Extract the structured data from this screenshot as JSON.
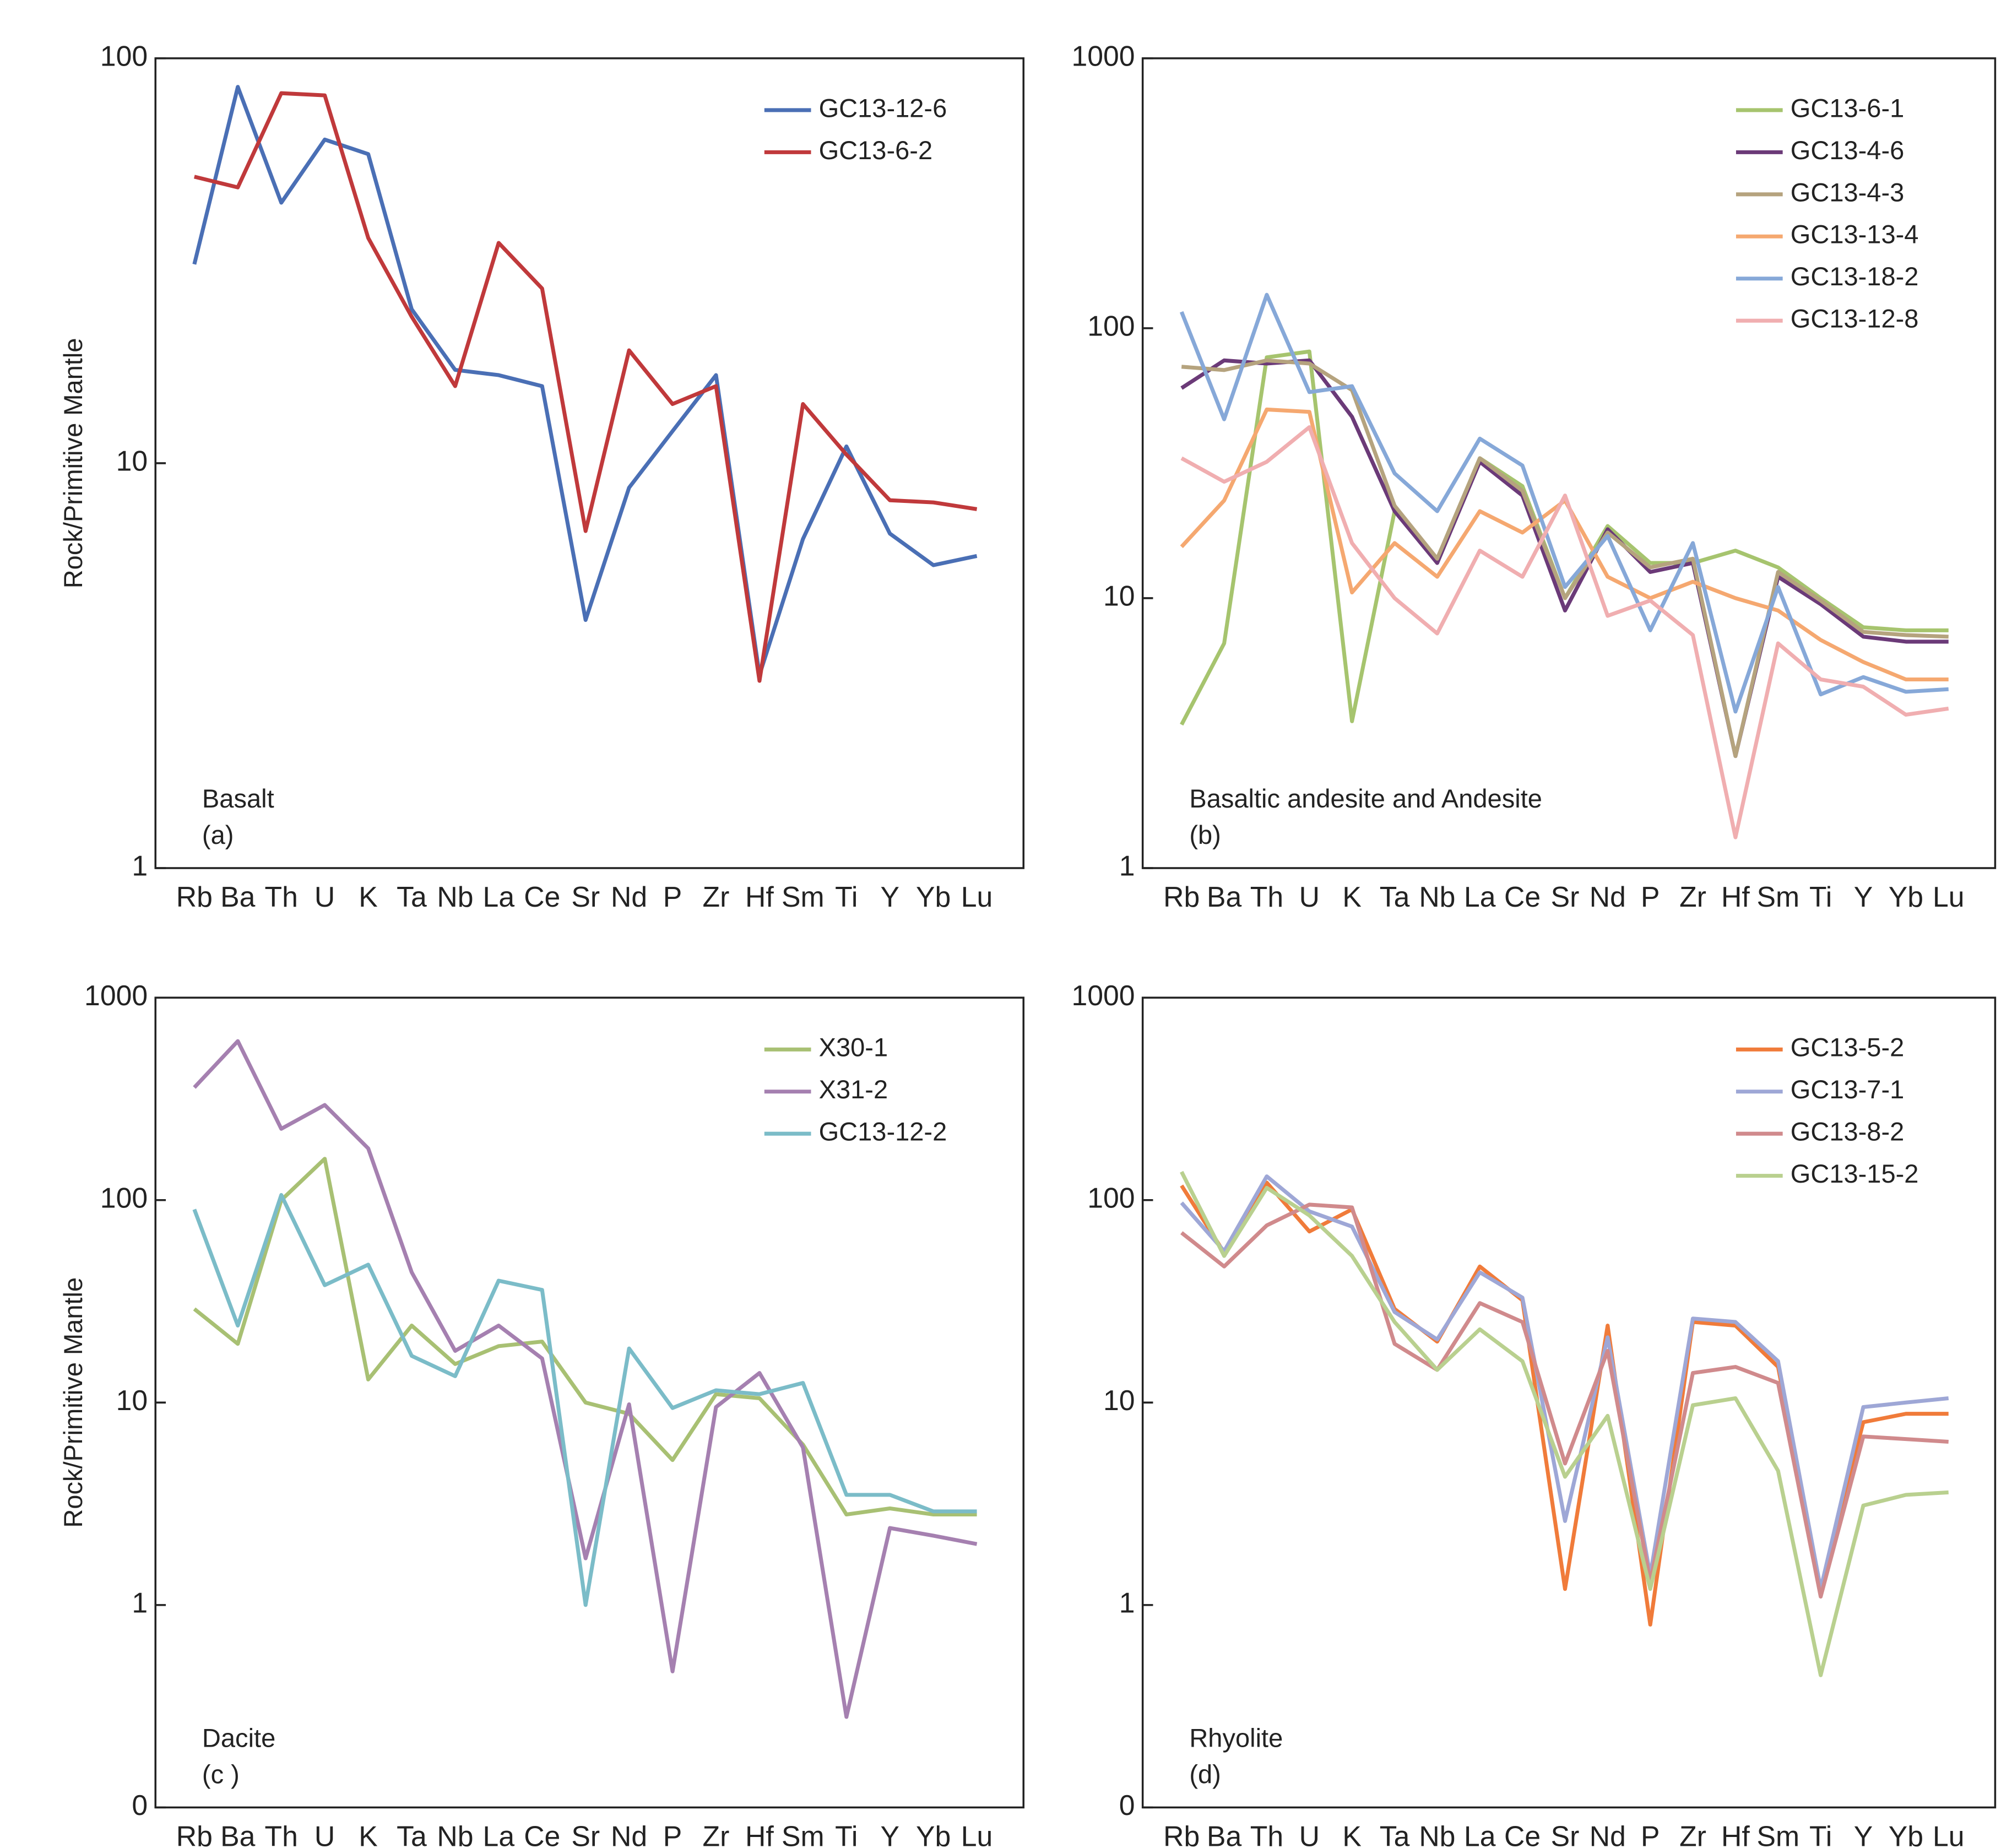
{
  "chart_data": [
    {
      "type": "line",
      "ylabel": "Rock/Primitive Mantle",
      "annotations": [
        "Basalt",
        "(a)"
      ],
      "categories": [
        "Rb",
        "Ba",
        "Th",
        "U",
        "K",
        "Ta",
        "Nb",
        "La",
        "Ce",
        "Sr",
        "Nd",
        "P",
        "Zr",
        "Hf",
        "Sm",
        "Ti",
        "Y",
        "Yb",
        "Lu"
      ],
      "ylim": [
        1,
        100
      ],
      "yticks": [
        1,
        10,
        100
      ],
      "log_scale": true,
      "legend": "upper right",
      "series": [
        {
          "name": "GC13-12-6",
          "color": "#4a6fb5",
          "values": [
            31,
            85,
            44,
            63,
            58,
            24,
            17,
            16.5,
            15.5,
            4.1,
            8.7,
            12,
            16.5,
            3.0,
            6.5,
            11,
            6.7,
            5.6,
            5.9
          ]
        },
        {
          "name": "GC13-6-2",
          "color": "#c0393b",
          "values": [
            51,
            48,
            82,
            81,
            36,
            23,
            15.5,
            35,
            27,
            6.8,
            19,
            14,
            15.5,
            2.9,
            14,
            10.5,
            8.1,
            8,
            7.7
          ]
        }
      ]
    },
    {
      "type": "line",
      "annotations": [
        "Basaltic andesite and Andesite",
        "(b)"
      ],
      "categories": [
        "Rb",
        "Ba",
        "Th",
        "U",
        "K",
        "Ta",
        "Nb",
        "La",
        "Ce",
        "Sr",
        "Nd",
        "P",
        "Zr",
        "Hf",
        "Sm",
        "Ti",
        "Y",
        "Yb",
        "Lu"
      ],
      "ylim": [
        1,
        1000
      ],
      "yticks": [
        1,
        10,
        100,
        1000
      ],
      "log_scale": true,
      "legend": "upper right",
      "series": [
        {
          "name": "GC13-6-1",
          "color": "#a6c46e",
          "values": [
            3.4,
            6.8,
            78,
            82,
            3.5,
            21,
            14,
            33,
            26,
            10,
            18.5,
            13.5,
            13.5,
            15,
            13,
            10,
            7.8,
            7.6,
            7.6
          ]
        },
        {
          "name": "GC13-4-6",
          "color": "#6b3a78",
          "values": [
            60,
            76,
            74,
            76,
            47,
            21,
            13.5,
            32,
            24,
            9,
            18,
            12.5,
            13.5,
            2.6,
            12,
            9.5,
            7.2,
            6.9,
            6.9
          ]
        },
        {
          "name": "GC13-4-3",
          "color": "#b5a37e",
          "values": [
            72,
            70,
            76,
            74,
            59,
            22,
            14,
            33,
            25,
            10,
            17.5,
            13,
            14,
            2.6,
            12.5,
            9.8,
            7.5,
            7.3,
            7.2
          ]
        },
        {
          "name": "GC13-13-4",
          "color": "#f5a870",
          "values": [
            15.5,
            23,
            50,
            49,
            10.5,
            16,
            12,
            21,
            17.5,
            23,
            12,
            10,
            11.5,
            10,
            9,
            7,
            5.8,
            5,
            5
          ]
        },
        {
          "name": "GC13-18-2",
          "color": "#86a8d8",
          "values": [
            115,
            46,
            133,
            58,
            61,
            29,
            21,
            39,
            31,
            11,
            17,
            7.6,
            16,
            3.8,
            11,
            4.4,
            5.1,
            4.5,
            4.6
          ]
        },
        {
          "name": "GC13-12-8",
          "color": "#f0aeb0",
          "values": [
            33,
            27,
            32,
            43,
            16,
            10,
            7.4,
            15,
            12,
            24,
            8.6,
            9.8,
            7.3,
            1.3,
            6.8,
            5,
            4.7,
            3.7,
            3.9
          ]
        }
      ]
    },
    {
      "type": "line",
      "ylabel": "Rock/Primitive Mantle",
      "annotations": [
        "Dacite",
        "(c )"
      ],
      "categories": [
        "Rb",
        "Ba",
        "Th",
        "U",
        "K",
        "Ta",
        "Nb",
        "La",
        "Ce",
        "Sr",
        "Nd",
        "P",
        "Zr",
        "Hf",
        "Sm",
        "Ti",
        "Y",
        "Yb",
        "Lu"
      ],
      "ylim": [
        0.1,
        1000
      ],
      "yticks": [
        {
          "value": 0.1,
          "label": "0"
        },
        1,
        10,
        100,
        1000
      ],
      "log_scale": true,
      "legend": "upper right",
      "series": [
        {
          "name": "X30-1",
          "color": "#a8c073",
          "values": [
            29,
            19.5,
            100,
            160,
            13,
            24,
            15.5,
            19,
            20,
            10,
            8.8,
            5.2,
            11,
            10.5,
            6.2,
            2.8,
            3.0,
            2.8,
            2.8
          ]
        },
        {
          "name": "X31-2",
          "color": "#a580b0",
          "values": [
            360,
            610,
            225,
            295,
            180,
            44,
            18,
            24,
            16.5,
            1.7,
            9.8,
            0.47,
            9.5,
            14,
            6,
            0.28,
            2.4,
            2.2,
            2.0
          ]
        },
        {
          "name": "GC13-12-2",
          "color": "#7bbcc8",
          "values": [
            90,
            24,
            106,
            38,
            48,
            17,
            13.5,
            40,
            36,
            1.0,
            18.5,
            9.4,
            11.5,
            11,
            12.5,
            3.5,
            3.5,
            2.9,
            2.9
          ]
        }
      ]
    },
    {
      "type": "line",
      "annotations": [
        "Rhyolite",
        "(d)"
      ],
      "categories": [
        "Rb",
        "Ba",
        "Th",
        "U",
        "K",
        "Ta",
        "Nb",
        "La",
        "Ce",
        "Sr",
        "Nd",
        "P",
        "Zr",
        "Hf",
        "Sm",
        "Ti",
        "Y",
        "Yb",
        "Lu"
      ],
      "ylim": [
        0.1,
        1000
      ],
      "yticks": [
        {
          "value": 0.1,
          "label": "0"
        },
        1,
        10,
        100,
        1000
      ],
      "log_scale": true,
      "legend": "upper right",
      "series": [
        {
          "name": "GC13-5-2",
          "color": "#f07b3a",
          "values": [
            118,
            55,
            122,
            70,
            90,
            29,
            20,
            47,
            32,
            1.2,
            24,
            0.8,
            25,
            24,
            15,
            1.2,
            8,
            8.8,
            8.8
          ]
        },
        {
          "name": "GC13-7-1",
          "color": "#9ea7d6",
          "values": [
            97,
            56,
            131,
            88,
            74,
            28,
            20.5,
            44,
            33,
            2.6,
            21,
            1.4,
            26,
            25,
            16,
            1.2,
            9.5,
            10,
            10.5
          ]
        },
        {
          "name": "GC13-8-2",
          "color": "#d08a8c",
          "values": [
            69,
            47,
            75,
            95,
            92,
            19.5,
            14.5,
            31,
            25,
            5,
            18,
            1.3,
            14,
            15,
            12.5,
            1.1,
            6.8,
            6.6,
            6.4
          ]
        },
        {
          "name": "GC13-15-2",
          "color": "#b9d08f",
          "values": [
            138,
            53,
            115,
            84,
            53,
            25,
            14.5,
            23,
            16,
            4.3,
            8.6,
            1.2,
            9.7,
            10.5,
            4.6,
            0.45,
            3.1,
            3.5,
            3.6
          ]
        }
      ]
    }
  ]
}
